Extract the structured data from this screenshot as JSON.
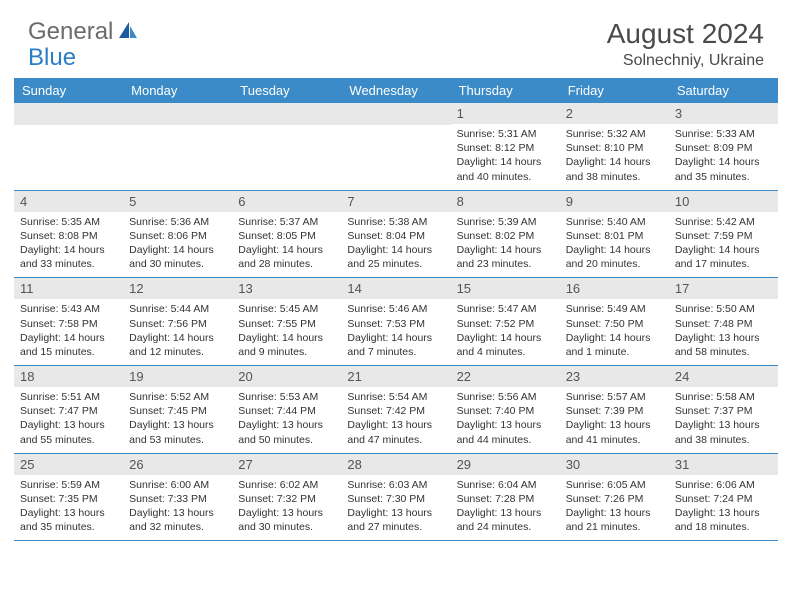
{
  "logo": {
    "text1": "General",
    "text2": "Blue"
  },
  "title": "August 2024",
  "location": "Solnechniy, Ukraine",
  "colors": {
    "header_bar": "#3b8bc9",
    "day_num_bg": "#e8e8e8",
    "logo_gray": "#6b6b6b",
    "logo_blue": "#2a7ec6",
    "text": "#333333"
  },
  "weekdays": [
    "Sunday",
    "Monday",
    "Tuesday",
    "Wednesday",
    "Thursday",
    "Friday",
    "Saturday"
  ],
  "weeks": [
    [
      {
        "num": "",
        "sunrise": "",
        "sunset": "",
        "daylight": ""
      },
      {
        "num": "",
        "sunrise": "",
        "sunset": "",
        "daylight": ""
      },
      {
        "num": "",
        "sunrise": "",
        "sunset": "",
        "daylight": ""
      },
      {
        "num": "",
        "sunrise": "",
        "sunset": "",
        "daylight": ""
      },
      {
        "num": "1",
        "sunrise": "Sunrise: 5:31 AM",
        "sunset": "Sunset: 8:12 PM",
        "daylight": "Daylight: 14 hours and 40 minutes."
      },
      {
        "num": "2",
        "sunrise": "Sunrise: 5:32 AM",
        "sunset": "Sunset: 8:10 PM",
        "daylight": "Daylight: 14 hours and 38 minutes."
      },
      {
        "num": "3",
        "sunrise": "Sunrise: 5:33 AM",
        "sunset": "Sunset: 8:09 PM",
        "daylight": "Daylight: 14 hours and 35 minutes."
      }
    ],
    [
      {
        "num": "4",
        "sunrise": "Sunrise: 5:35 AM",
        "sunset": "Sunset: 8:08 PM",
        "daylight": "Daylight: 14 hours and 33 minutes."
      },
      {
        "num": "5",
        "sunrise": "Sunrise: 5:36 AM",
        "sunset": "Sunset: 8:06 PM",
        "daylight": "Daylight: 14 hours and 30 minutes."
      },
      {
        "num": "6",
        "sunrise": "Sunrise: 5:37 AM",
        "sunset": "Sunset: 8:05 PM",
        "daylight": "Daylight: 14 hours and 28 minutes."
      },
      {
        "num": "7",
        "sunrise": "Sunrise: 5:38 AM",
        "sunset": "Sunset: 8:04 PM",
        "daylight": "Daylight: 14 hours and 25 minutes."
      },
      {
        "num": "8",
        "sunrise": "Sunrise: 5:39 AM",
        "sunset": "Sunset: 8:02 PM",
        "daylight": "Daylight: 14 hours and 23 minutes."
      },
      {
        "num": "9",
        "sunrise": "Sunrise: 5:40 AM",
        "sunset": "Sunset: 8:01 PM",
        "daylight": "Daylight: 14 hours and 20 minutes."
      },
      {
        "num": "10",
        "sunrise": "Sunrise: 5:42 AM",
        "sunset": "Sunset: 7:59 PM",
        "daylight": "Daylight: 14 hours and 17 minutes."
      }
    ],
    [
      {
        "num": "11",
        "sunrise": "Sunrise: 5:43 AM",
        "sunset": "Sunset: 7:58 PM",
        "daylight": "Daylight: 14 hours and 15 minutes."
      },
      {
        "num": "12",
        "sunrise": "Sunrise: 5:44 AM",
        "sunset": "Sunset: 7:56 PM",
        "daylight": "Daylight: 14 hours and 12 minutes."
      },
      {
        "num": "13",
        "sunrise": "Sunrise: 5:45 AM",
        "sunset": "Sunset: 7:55 PM",
        "daylight": "Daylight: 14 hours and 9 minutes."
      },
      {
        "num": "14",
        "sunrise": "Sunrise: 5:46 AM",
        "sunset": "Sunset: 7:53 PM",
        "daylight": "Daylight: 14 hours and 7 minutes."
      },
      {
        "num": "15",
        "sunrise": "Sunrise: 5:47 AM",
        "sunset": "Sunset: 7:52 PM",
        "daylight": "Daylight: 14 hours and 4 minutes."
      },
      {
        "num": "16",
        "sunrise": "Sunrise: 5:49 AM",
        "sunset": "Sunset: 7:50 PM",
        "daylight": "Daylight: 14 hours and 1 minute."
      },
      {
        "num": "17",
        "sunrise": "Sunrise: 5:50 AM",
        "sunset": "Sunset: 7:48 PM",
        "daylight": "Daylight: 13 hours and 58 minutes."
      }
    ],
    [
      {
        "num": "18",
        "sunrise": "Sunrise: 5:51 AM",
        "sunset": "Sunset: 7:47 PM",
        "daylight": "Daylight: 13 hours and 55 minutes."
      },
      {
        "num": "19",
        "sunrise": "Sunrise: 5:52 AM",
        "sunset": "Sunset: 7:45 PM",
        "daylight": "Daylight: 13 hours and 53 minutes."
      },
      {
        "num": "20",
        "sunrise": "Sunrise: 5:53 AM",
        "sunset": "Sunset: 7:44 PM",
        "daylight": "Daylight: 13 hours and 50 minutes."
      },
      {
        "num": "21",
        "sunrise": "Sunrise: 5:54 AM",
        "sunset": "Sunset: 7:42 PM",
        "daylight": "Daylight: 13 hours and 47 minutes."
      },
      {
        "num": "22",
        "sunrise": "Sunrise: 5:56 AM",
        "sunset": "Sunset: 7:40 PM",
        "daylight": "Daylight: 13 hours and 44 minutes."
      },
      {
        "num": "23",
        "sunrise": "Sunrise: 5:57 AM",
        "sunset": "Sunset: 7:39 PM",
        "daylight": "Daylight: 13 hours and 41 minutes."
      },
      {
        "num": "24",
        "sunrise": "Sunrise: 5:58 AM",
        "sunset": "Sunset: 7:37 PM",
        "daylight": "Daylight: 13 hours and 38 minutes."
      }
    ],
    [
      {
        "num": "25",
        "sunrise": "Sunrise: 5:59 AM",
        "sunset": "Sunset: 7:35 PM",
        "daylight": "Daylight: 13 hours and 35 minutes."
      },
      {
        "num": "26",
        "sunrise": "Sunrise: 6:00 AM",
        "sunset": "Sunset: 7:33 PM",
        "daylight": "Daylight: 13 hours and 32 minutes."
      },
      {
        "num": "27",
        "sunrise": "Sunrise: 6:02 AM",
        "sunset": "Sunset: 7:32 PM",
        "daylight": "Daylight: 13 hours and 30 minutes."
      },
      {
        "num": "28",
        "sunrise": "Sunrise: 6:03 AM",
        "sunset": "Sunset: 7:30 PM",
        "daylight": "Daylight: 13 hours and 27 minutes."
      },
      {
        "num": "29",
        "sunrise": "Sunrise: 6:04 AM",
        "sunset": "Sunset: 7:28 PM",
        "daylight": "Daylight: 13 hours and 24 minutes."
      },
      {
        "num": "30",
        "sunrise": "Sunrise: 6:05 AM",
        "sunset": "Sunset: 7:26 PM",
        "daylight": "Daylight: 13 hours and 21 minutes."
      },
      {
        "num": "31",
        "sunrise": "Sunrise: 6:06 AM",
        "sunset": "Sunset: 7:24 PM",
        "daylight": "Daylight: 13 hours and 18 minutes."
      }
    ]
  ]
}
